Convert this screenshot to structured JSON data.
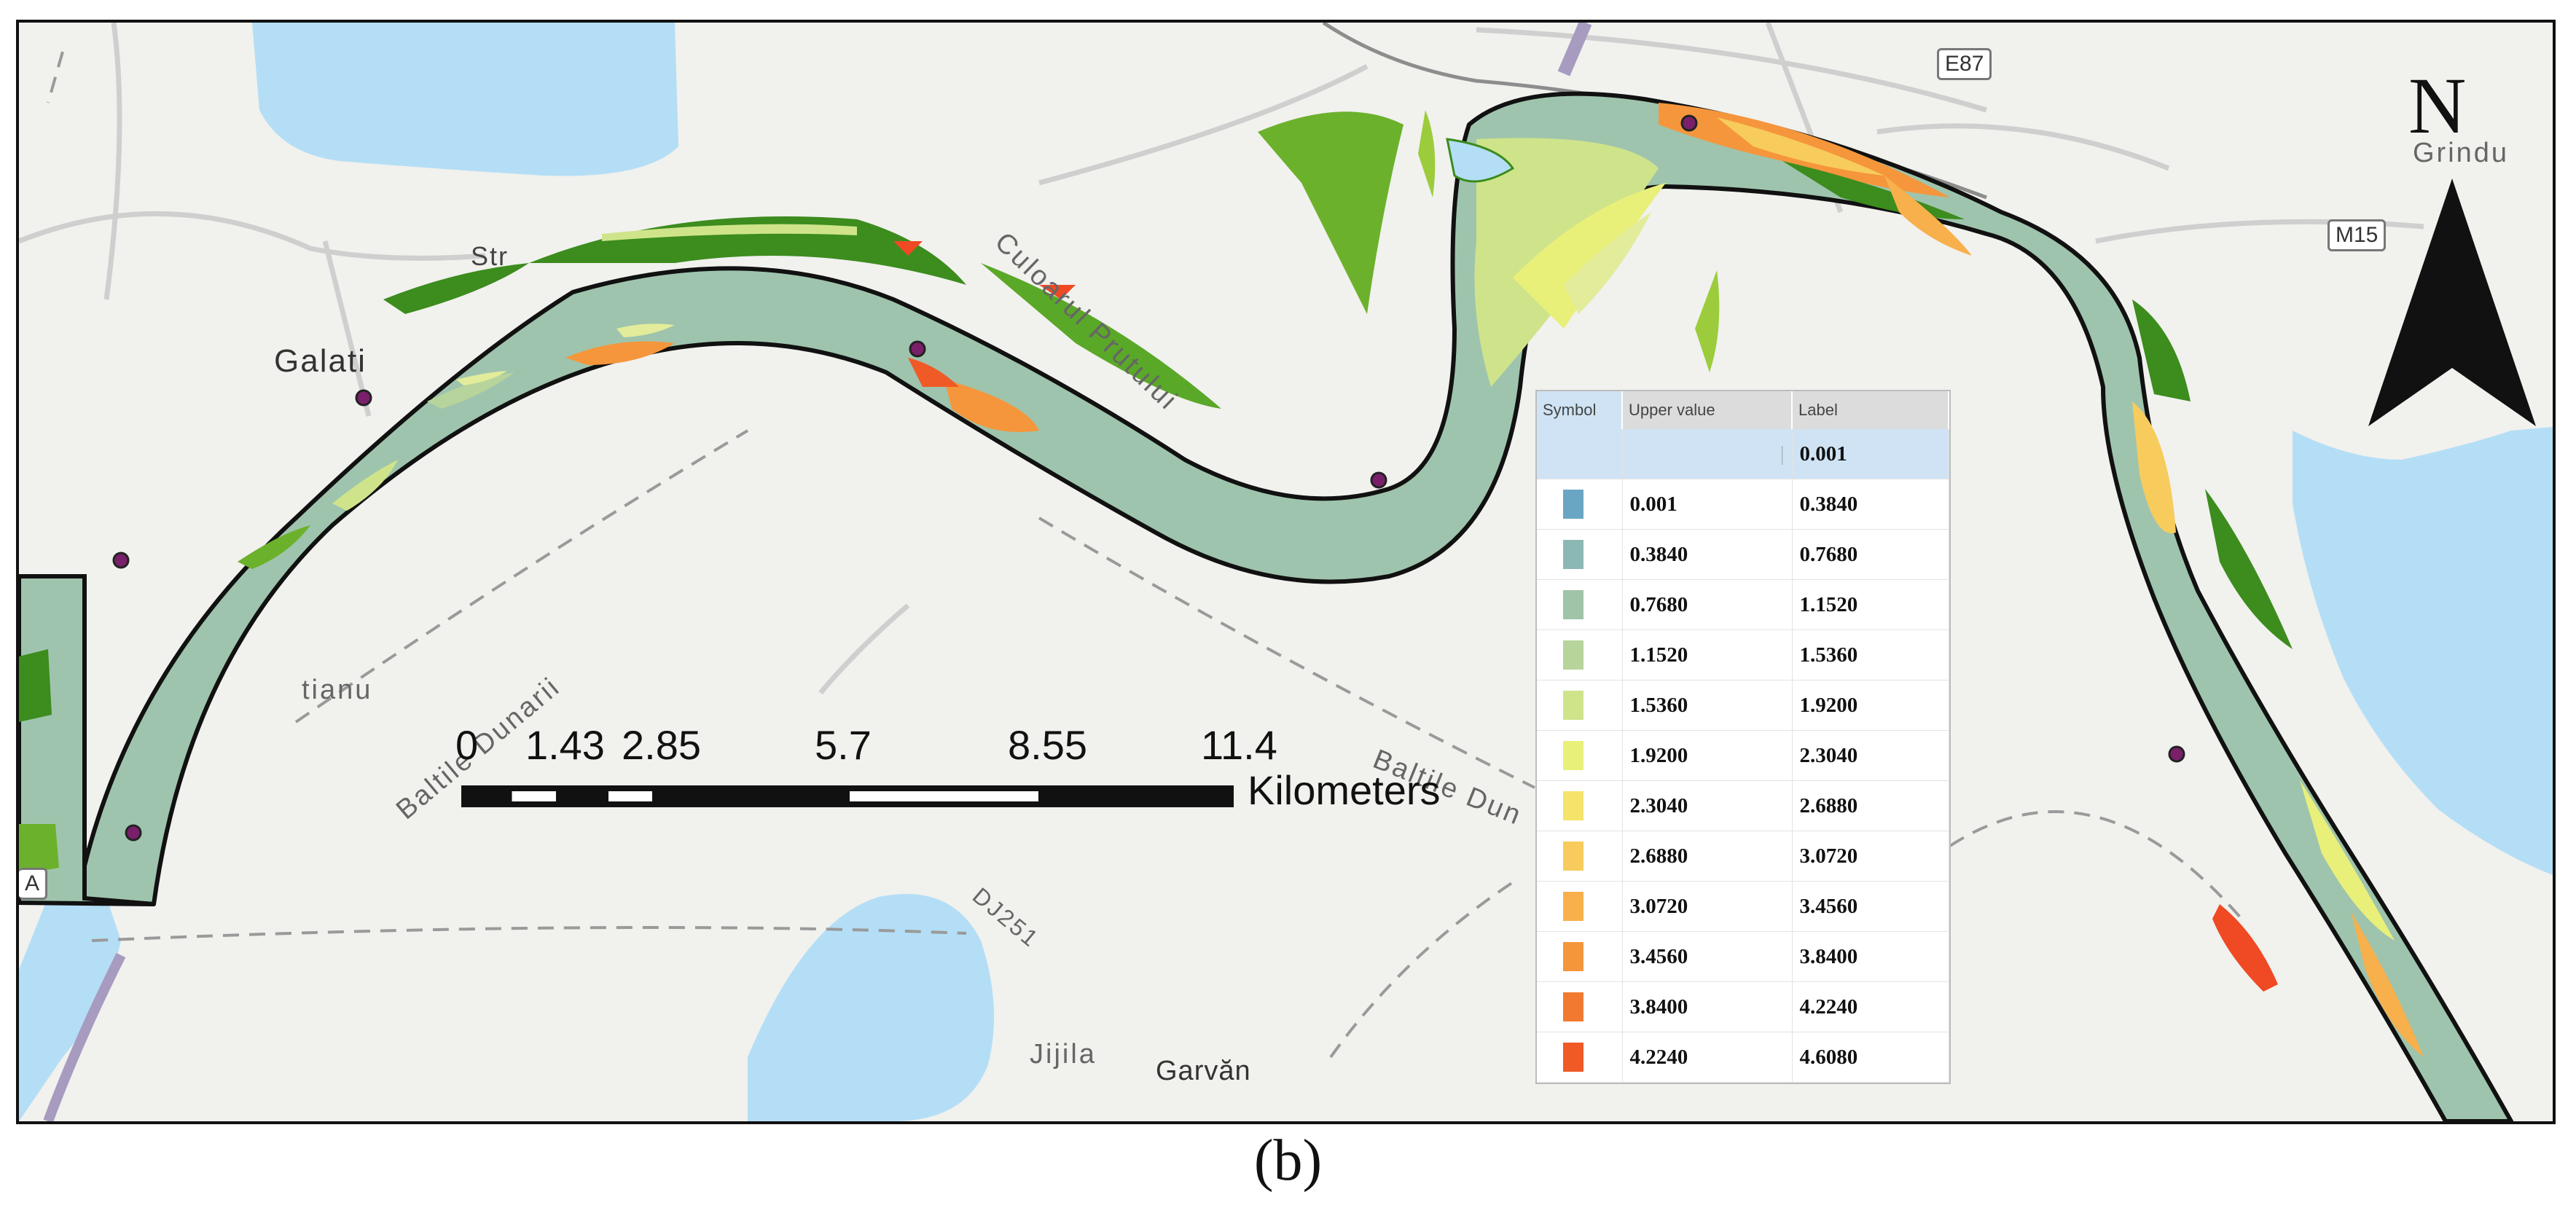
{
  "map": {
    "places": {
      "galati": "Galati",
      "str": "Str",
      "culoarul": "Culoarul Prutului",
      "baltile_left": "Baltile Dunarii",
      "baltile_right": "Baltile Dun",
      "tianu": "tianu",
      "dj251": "DJ251",
      "jijila": "Jijila",
      "garvan": "Garvăn",
      "grindu": "Grindu"
    },
    "roads": {
      "e87": "E87",
      "m15": "M15",
      "a_label": "A"
    },
    "colors": {
      "water": "#b4def6",
      "river": "#9fc4ad",
      "land": "#f1f1ee",
      "green_dark": "#3c8c1e",
      "green_light": "#9ccc3c",
      "yellow": "#e9f07a",
      "orange": "#f39a2c",
      "red": "#ef4a24",
      "station": "#7a1f6a"
    }
  },
  "legend": {
    "headers": {
      "symbol": "Symbol",
      "upper": "Upper value",
      "label": "Label"
    },
    "first_row_label": "0.001",
    "rows": [
      {
        "upper": "0.001",
        "label": "0.3840",
        "color": "#6aa6c4"
      },
      {
        "upper": "0.3840",
        "label": "0.7680",
        "color": "#8cb8b4"
      },
      {
        "upper": "0.7680",
        "label": "1.1520",
        "color": "#9fc4a8"
      },
      {
        "upper": "1.1520",
        "label": "1.5360",
        "color": "#b6d49b"
      },
      {
        "upper": "1.5360",
        "label": "1.9200",
        "color": "#cfe48a"
      },
      {
        "upper": "1.9200",
        "label": "2.3040",
        "color": "#e9f07a"
      },
      {
        "upper": "2.3040",
        "label": "2.6880",
        "color": "#f5e36a"
      },
      {
        "upper": "2.6880",
        "label": "3.0720",
        "color": "#f7cc5c"
      },
      {
        "upper": "3.0720",
        "label": "3.4560",
        "color": "#f7b04c"
      },
      {
        "upper": "3.4560",
        "label": "3.8400",
        "color": "#f5963c"
      },
      {
        "upper": "3.8400",
        "label": "4.2240",
        "color": "#f27a30"
      },
      {
        "upper": "4.2240",
        "label": "4.6080",
        "color": "#ef5a26"
      }
    ]
  },
  "scale_bar": {
    "ticks": [
      "0",
      "1.43",
      "2.85",
      "5.7",
      "8.55",
      "11.4"
    ],
    "tick_values": [
      0,
      1.43,
      2.85,
      5.7,
      8.55,
      11.4
    ],
    "units": "Kilometers"
  },
  "north_arrow": {
    "letter": "N"
  },
  "caption": "(b)"
}
